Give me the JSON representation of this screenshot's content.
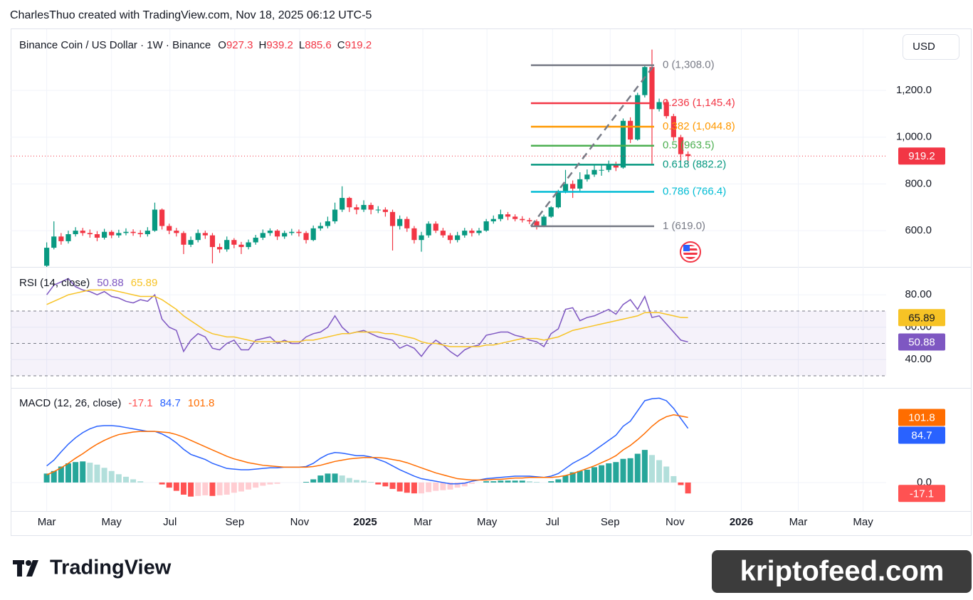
{
  "attribution": "CharlesThuo created with TradingView.com, Nov 18, 2025 06:12 UTC-5",
  "currency_button": "USD",
  "branding": "TradingView",
  "watermark": "kriptofeed.com",
  "chart_data": [
    {
      "type": "candlestick",
      "title": "Binance Coin / US Dollar · 1W · Binance",
      "ohlc_labels": [
        "O",
        "H",
        "L",
        "C"
      ],
      "up_color": "#089981",
      "down_color": "#f23645",
      "open": [
        450,
        527,
        575,
        555,
        585,
        600,
        590,
        585,
        570,
        595,
        580,
        590,
        595,
        590,
        585,
        600,
        690,
        620,
        600,
        590,
        540,
        560,
        590,
        580,
        530,
        520,
        560,
        540,
        530,
        550,
        570,
        590,
        600,
        575,
        590,
        595,
        590,
        560,
        610,
        620,
        640,
        690,
        740,
        700,
        690,
        710,
        690,
        690,
        680,
        620,
        650,
        610,
        560,
        580,
        630,
        600,
        580,
        560,
        580,
        600,
        590,
        600,
        640,
        650,
        670,
        660,
        650,
        645,
        640,
        620,
        660,
        700,
        770,
        800,
        780,
        820,
        840,
        860,
        860,
        880,
        870,
        1070,
        990,
        1180,
        1300,
        1120,
        1150,
        1090,
        1000,
        927.3
      ],
      "high": [
        550,
        640,
        590,
        600,
        615,
        612,
        605,
        598,
        608,
        602,
        604,
        610,
        606,
        602,
        615,
        720,
        695,
        630,
        612,
        598,
        575,
        605,
        600,
        590,
        545,
        575,
        568,
        552,
        562,
        582,
        605,
        610,
        606,
        600,
        608,
        605,
        598,
        622,
        635,
        660,
        720,
        790,
        745,
        712,
        730,
        720,
        705,
        700,
        690,
        665,
        660,
        620,
        595,
        640,
        640,
        612,
        590,
        595,
        612,
        610,
        612,
        650,
        665,
        690,
        680,
        670,
        662,
        655,
        648,
        668,
        705,
        775,
        860,
        815,
        850,
        862,
        880,
        880,
        900,
        895,
        1080,
        1085,
        1190,
        1310,
        1375,
        1165,
        1160,
        1100,
        1010,
        939.2
      ],
      "low": [
        440,
        520,
        540,
        545,
        575,
        578,
        570,
        555,
        562,
        568,
        570,
        580,
        578,
        572,
        575,
        595,
        605,
        585,
        575,
        500,
        530,
        550,
        565,
        460,
        505,
        510,
        525,
        500,
        520,
        540,
        560,
        578,
        560,
        565,
        580,
        575,
        545,
        555,
        600,
        610,
        630,
        680,
        680,
        670,
        680,
        670,
        675,
        660,
        515,
        605,
        595,
        545,
        510,
        570,
        590,
        570,
        545,
        550,
        570,
        575,
        580,
        595,
        630,
        640,
        645,
        640,
        635,
        628,
        605,
        615,
        655,
        695,
        760,
        740,
        770,
        810,
        830,
        835,
        850,
        855,
        865,
        975,
        985,
        1170,
        880,
        1110,
        1080,
        985,
        900,
        885.6
      ],
      "close": [
        527,
        575,
        555,
        585,
        600,
        590,
        585,
        570,
        595,
        580,
        590,
        595,
        590,
        585,
        600,
        690,
        620,
        600,
        590,
        540,
        560,
        590,
        580,
        530,
        520,
        560,
        540,
        530,
        550,
        570,
        590,
        600,
        575,
        590,
        595,
        590,
        560,
        610,
        620,
        640,
        690,
        740,
        700,
        690,
        710,
        690,
        690,
        680,
        620,
        650,
        610,
        560,
        580,
        630,
        600,
        580,
        560,
        580,
        600,
        590,
        600,
        640,
        650,
        670,
        660,
        650,
        645,
        640,
        620,
        660,
        700,
        770,
        800,
        780,
        820,
        840,
        860,
        860,
        880,
        870,
        1070,
        990,
        1180,
        1300,
        1120,
        1150,
        1090,
        1000,
        927.3,
        919.2
      ],
      "ylim": [
        445,
        1459
      ],
      "yticks": [
        {
          "value": 600,
          "label": "600.0"
        },
        {
          "value": 800,
          "label": "800.0"
        },
        {
          "value": 1000,
          "label": "1,000.0"
        },
        {
          "value": 1200,
          "label": "1,200.0"
        }
      ],
      "fib": {
        "x": [
          67.2,
          84.3
        ],
        "levels": [
          {
            "value": 1308.0,
            "label": "0 (1,308.0)",
            "color": "#787b86"
          },
          {
            "value": 1145.4,
            "label": "0.236 (1,145.4)",
            "color": "#f23645"
          },
          {
            "value": 1044.8,
            "label": "0.382 (1,044.8)",
            "color": "#ff9800"
          },
          {
            "value": 963.5,
            "label": "0.5 (963.5)",
            "color": "#4caf50"
          },
          {
            "value": 882.2,
            "label": "0.618 (882.2)",
            "color": "#089981"
          },
          {
            "value": 766.4,
            "label": "0.786 (766.4)",
            "color": "#00bcd4"
          },
          {
            "value": 619.0,
            "label": "1 (619.0)",
            "color": "#787b86"
          }
        ]
      }
    },
    {
      "type": "line",
      "title": "RSI (14, close)",
      "series": [
        {
          "type": "line",
          "color": "#7e57c2",
          "values": [
            80,
            86,
            88,
            90,
            85,
            83,
            82,
            80,
            82,
            79,
            78,
            76,
            75,
            77,
            76,
            80,
            65,
            60,
            58,
            45,
            52,
            56,
            54,
            47,
            46,
            50,
            52,
            46,
            46,
            52,
            53,
            54,
            50,
            52,
            50,
            50,
            54,
            56,
            57,
            60,
            67,
            60,
            56,
            57,
            58,
            56,
            54,
            53,
            52,
            47,
            49,
            47,
            42,
            48,
            52,
            49,
            45,
            42,
            46,
            48,
            49,
            55,
            56,
            57,
            57,
            55,
            54,
            52,
            51,
            48,
            56,
            59,
            71,
            72,
            64,
            66,
            67,
            69,
            71,
            68,
            74,
            77,
            71,
            79,
            66,
            67,
            62,
            57,
            52,
            50.88
          ]
        },
        {
          "type": "line",
          "color": "#f7c325",
          "values": [
            74,
            76,
            78,
            80,
            81,
            82,
            83,
            83,
            83,
            83,
            82,
            81,
            80,
            79,
            79,
            79,
            77,
            74,
            71,
            67,
            64,
            61,
            58,
            56,
            55,
            54,
            54,
            53,
            52,
            51,
            51,
            51,
            51,
            51,
            51,
            51,
            52,
            52,
            53,
            54,
            55,
            56,
            56,
            57,
            57,
            57,
            57,
            56,
            56,
            55,
            54,
            53,
            51,
            50,
            50,
            49,
            48,
            48,
            48,
            48,
            48,
            49,
            49,
            50,
            51,
            52,
            53,
            53,
            53,
            52,
            53,
            54,
            56,
            58,
            59,
            60,
            61,
            62,
            63,
            64,
            65,
            66,
            67,
            69,
            69,
            69,
            68,
            67,
            66,
            65.89
          ]
        }
      ],
      "bands": [
        70,
        50,
        30
      ],
      "ylim": [
        22.5,
        96.8
      ],
      "yticks": [
        {
          "value": 80,
          "label": "80.00"
        },
        {
          "value": 60,
          "label": "60.00"
        },
        {
          "value": 40,
          "label": "40.00"
        }
      ]
    },
    {
      "type": "line",
      "title": "MACD (12, 26, close)",
      "series": [
        {
          "type": "bar",
          "values": [
            14,
            18,
            25,
            30,
            32,
            33,
            31,
            28,
            23,
            18,
            13,
            9,
            5,
            2,
            0,
            0,
            -3,
            -8,
            -13,
            -19,
            -22,
            -21,
            -20,
            -21,
            -20,
            -19,
            -16,
            -14,
            -11,
            -8,
            -5,
            -3,
            -2,
            0,
            0,
            0,
            1,
            5,
            11,
            14,
            14,
            11,
            7,
            4,
            3,
            1,
            -3,
            -6,
            -10,
            -14,
            -16,
            -17,
            -17,
            -15,
            -13,
            -12,
            -11,
            -8,
            -6,
            -2,
            0,
            2,
            2,
            3,
            3,
            3,
            3,
            2,
            1,
            0,
            2,
            5,
            11,
            16,
            18,
            20,
            24,
            27,
            30,
            32,
            37,
            38,
            45,
            51,
            43,
            35,
            25,
            10,
            -4,
            -17.1
          ]
        },
        {
          "type": "line",
          "color": "#2962ff",
          "values": [
            26,
            35,
            48,
            60,
            70,
            78,
            84,
            88,
            89,
            89,
            88,
            86,
            84,
            82,
            80,
            80,
            76,
            70,
            62,
            52,
            44,
            40,
            36,
            30,
            26,
            22,
            21,
            20,
            20,
            21,
            22,
            23,
            23,
            24,
            24,
            24,
            25,
            30,
            38,
            44,
            47,
            46,
            44,
            42,
            42,
            40,
            36,
            32,
            26,
            20,
            15,
            10,
            6,
            4,
            2,
            0,
            -2,
            -2,
            -1,
            2,
            4,
            6,
            7,
            8,
            9,
            10,
            10,
            10,
            9,
            8,
            10,
            14,
            22,
            30,
            36,
            42,
            50,
            58,
            66,
            74,
            88,
            96,
            112,
            128,
            131,
            132,
            128,
            116,
            100,
            84.7
          ]
        },
        {
          "type": "line",
          "color": "#ff6d00",
          "values": [
            12,
            17,
            23,
            30,
            38,
            45,
            53,
            60,
            66,
            71,
            75,
            77,
            79,
            80,
            80,
            80,
            79,
            78,
            75,
            71,
            66,
            61,
            56,
            51,
            46,
            41,
            37,
            34,
            31,
            29,
            27,
            26,
            25,
            24,
            24,
            24,
            24,
            25,
            27,
            30,
            33,
            35,
            37,
            38,
            39,
            39,
            39,
            38,
            36,
            34,
            31,
            27,
            23,
            19,
            15,
            12,
            9,
            6,
            5,
            4,
            4,
            4,
            5,
            5,
            6,
            7,
            7,
            8,
            8,
            8,
            8,
            9,
            11,
            14,
            18,
            22,
            26,
            31,
            36,
            42,
            51,
            58,
            67,
            77,
            88,
            97,
            103,
            106,
            104,
            101.8
          ]
        }
      ],
      "ylim": [
        -44.6,
        148
      ],
      "yticks": [
        {
          "value": 0,
          "label": "0.0"
        }
      ],
      "xlim": [
        -5,
        116.5
      ],
      "xticks": [
        {
          "value": 0,
          "label": "Mar"
        },
        {
          "value": 9,
          "label": "May"
        },
        {
          "value": 17.1,
          "label": "Jul"
        },
        {
          "value": 26.1,
          "label": "Sep"
        },
        {
          "value": 35.1,
          "label": "Nov"
        },
        {
          "value": 44.2,
          "label": "2025"
        },
        {
          "value": 52.2,
          "label": "Mar"
        },
        {
          "value": 61.1,
          "label": "May"
        },
        {
          "value": 70.2,
          "label": "Jul"
        },
        {
          "value": 78.2,
          "label": "Sep"
        },
        {
          "value": 87.2,
          "label": "Nov"
        },
        {
          "value": 96.4,
          "label": "2026"
        },
        {
          "value": 104.3,
          "label": "Mar"
        },
        {
          "value": 113.3,
          "label": "May"
        }
      ]
    }
  ]
}
